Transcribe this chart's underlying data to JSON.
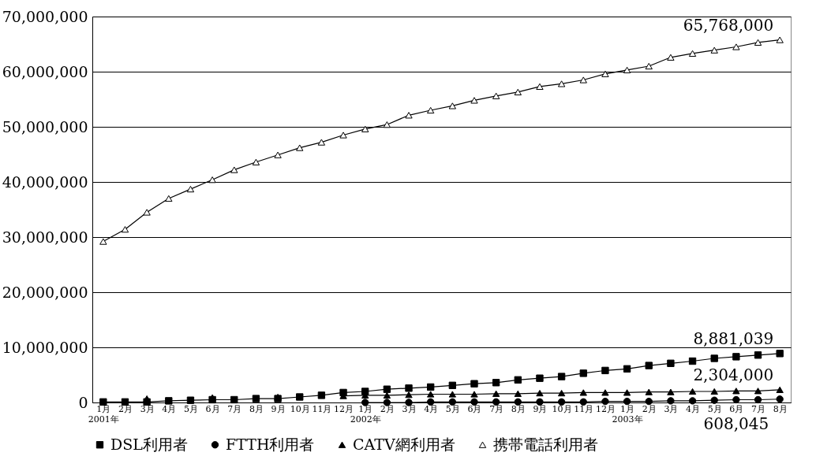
{
  "chart_data": {
    "type": "line",
    "categories": [
      "1月\n2001年",
      "2月",
      "3月",
      "4月",
      "5月",
      "6月",
      "7月",
      "8月",
      "9月",
      "10月",
      "11月",
      "12月",
      "1月\n2002年",
      "2月",
      "3月",
      "4月",
      "5月",
      "6月",
      "7月",
      "8月",
      "9月",
      "10月",
      "11月",
      "12月",
      "1月\n2003年",
      "2月",
      "3月",
      "4月",
      "5月",
      "6月",
      "7月",
      "8月"
    ],
    "series": [
      {
        "name": "DSL利用者",
        "color": "#000000",
        "marker": "square",
        "values": [
          100000,
          100000,
          100000,
          300000,
          400000,
          500000,
          500000,
          700000,
          700000,
          1000000,
          1300000,
          1800000,
          2000000,
          2400000,
          2600000,
          2800000,
          3100000,
          3400000,
          3600000,
          4100000,
          4400000,
          4700000,
          5300000,
          5800000,
          6100000,
          6700000,
          7100000,
          7500000,
          8000000,
          8300000,
          8600000,
          8881039
        ],
        "value_labels": [
          null,
          null,
          null,
          null,
          null,
          null,
          null,
          null,
          null,
          null,
          null,
          null,
          null,
          null,
          null,
          null,
          null,
          null,
          null,
          null,
          null,
          null,
          null,
          null,
          null,
          null,
          null,
          null,
          null,
          null,
          null,
          "8,881,039"
        ]
      },
      {
        "name": "FTTH利用者",
        "color": "#000000",
        "marker": "circle",
        "values": [
          null,
          null,
          null,
          null,
          null,
          null,
          null,
          null,
          null,
          null,
          null,
          null,
          0,
          0,
          0,
          100000,
          100000,
          100000,
          100000,
          100000,
          100000,
          100000,
          100000,
          200000,
          200000,
          200000,
          300000,
          300000,
          400000,
          500000,
          500000,
          608045
        ],
        "value_labels": [
          null,
          null,
          null,
          null,
          null,
          null,
          null,
          null,
          null,
          null,
          null,
          null,
          null,
          null,
          null,
          null,
          null,
          null,
          null,
          null,
          null,
          null,
          null,
          null,
          null,
          null,
          null,
          null,
          null,
          null,
          null,
          "608,045"
        ]
      },
      {
        "name": "CATV網利用者",
        "color": "#000000",
        "marker": "triangle",
        "values": [
          null,
          null,
          700000,
          null,
          null,
          900000,
          null,
          null,
          1000000,
          null,
          null,
          1200000,
          1300000,
          1300000,
          1400000,
          1500000,
          1500000,
          1500000,
          1600000,
          1600000,
          1700000,
          1700000,
          1800000,
          1800000,
          1800000,
          1900000,
          1900000,
          2000000,
          2000000,
          2100000,
          2100000,
          2304000
        ],
        "value_labels": [
          null,
          null,
          null,
          null,
          null,
          null,
          null,
          null,
          null,
          null,
          null,
          null,
          null,
          null,
          null,
          null,
          null,
          null,
          null,
          null,
          null,
          null,
          null,
          null,
          null,
          null,
          null,
          null,
          null,
          null,
          null,
          "2,304,000"
        ]
      },
      {
        "name": "携帯電話利用者",
        "color": "#000000",
        "marker": "triangle-open",
        "values": [
          29200000,
          31400000,
          34500000,
          37000000,
          38700000,
          40400000,
          42200000,
          43600000,
          44900000,
          46200000,
          47200000,
          48500000,
          49600000,
          50400000,
          52100000,
          53000000,
          53800000,
          54800000,
          55600000,
          56300000,
          57300000,
          57800000,
          58500000,
          59600000,
          60300000,
          61000000,
          62600000,
          63300000,
          63900000,
          64500000,
          65300000,
          65768000
        ],
        "value_labels": [
          null,
          null,
          null,
          null,
          null,
          null,
          null,
          null,
          null,
          null,
          null,
          null,
          null,
          null,
          null,
          null,
          null,
          null,
          null,
          null,
          null,
          null,
          null,
          null,
          null,
          null,
          null,
          null,
          null,
          null,
          null,
          "65,768,000"
        ]
      }
    ],
    "ylim": [
      0,
      70000000
    ],
    "yticks": [
      0,
      {
        "value": 10000000,
        "label": "10,000,000"
      },
      {
        "value": 20000000,
        "label": "20,000,000"
      },
      {
        "value": 30000000,
        "label": "30,000,000"
      },
      {
        "value": 40000000,
        "label": "40,000,000"
      },
      {
        "value": 50000000,
        "label": "50,000,000"
      },
      {
        "value": 60000000,
        "label": "60,000,000"
      },
      {
        "value": 70000000,
        "label": "70,000,000"
      }
    ],
    "grid": "y",
    "legend": "bottom",
    "line_style": "solid"
  }
}
